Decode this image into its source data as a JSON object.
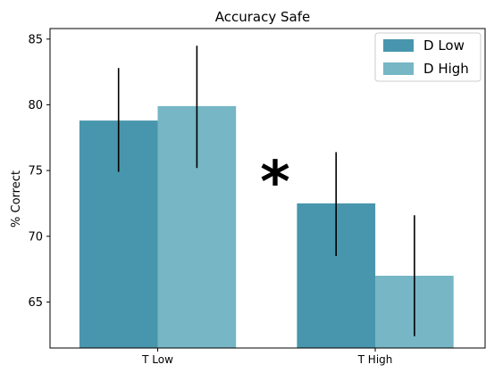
{
  "chart_data": {
    "type": "bar",
    "title": "Accuracy Safe",
    "xlabel": "",
    "ylabel": "% Correct",
    "categories": [
      "T Low",
      "T High"
    ],
    "series": [
      {
        "name": "D Low",
        "color": "#4896AD",
        "values": [
          78.8,
          72.5
        ],
        "error_low": [
          74.9,
          68.5
        ],
        "error_high": [
          82.8,
          76.4
        ]
      },
      {
        "name": "D High",
        "color": "#76B6C5",
        "values": [
          79.9,
          67.0
        ],
        "error_low": [
          75.2,
          62.4
        ],
        "error_high": [
          84.5,
          71.6
        ]
      }
    ],
    "ylim": [
      61.5,
      85.8
    ],
    "yticks": [
      65,
      70,
      75,
      80,
      85
    ],
    "grid": false,
    "legend_position": "top-right",
    "annotation": "*"
  }
}
